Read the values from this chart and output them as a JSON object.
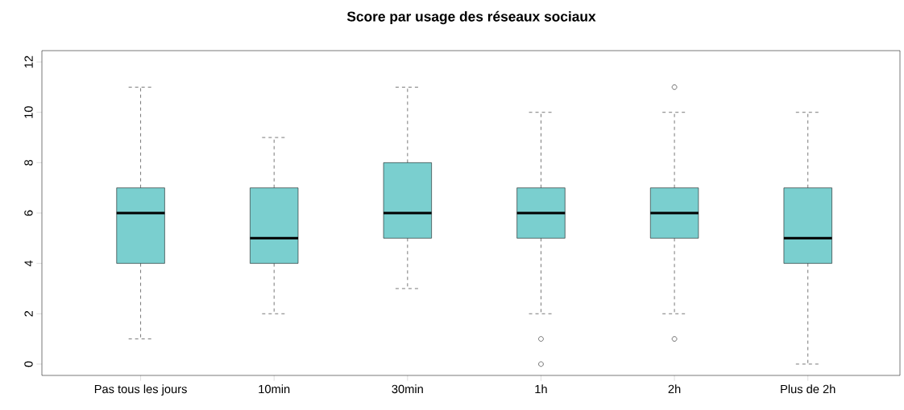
{
  "chart_data": {
    "type": "box",
    "title": "Score par usage des réseaux sociaux",
    "categories": [
      "Pas tous les jours",
      "10min",
      "30min",
      "1h",
      "2h",
      "Plus de 2h"
    ],
    "boxes": [
      {
        "low": 1,
        "q1": 4,
        "median": 6,
        "q3": 7,
        "high": 11
      },
      {
        "low": 2,
        "q1": 4,
        "median": 5,
        "q3": 7,
        "high": 9
      },
      {
        "low": 3,
        "q1": 5,
        "median": 6,
        "q3": 8,
        "high": 11
      },
      {
        "low": 2,
        "q1": 5,
        "median": 6,
        "q3": 7,
        "high": 10,
        "outliers": [
          1,
          0
        ]
      },
      {
        "low": 2,
        "q1": 5,
        "median": 6,
        "q3": 7,
        "high": 10,
        "outliers": [
          11,
          1
        ]
      },
      {
        "low": 0,
        "q1": 4,
        "median": 5,
        "q3": 7,
        "high": 10
      }
    ],
    "color": "#7acfcf",
    "ylim": [
      -0.45,
      12.45
    ],
    "yticks": [
      0,
      2,
      4,
      6,
      8,
      10,
      12
    ]
  }
}
